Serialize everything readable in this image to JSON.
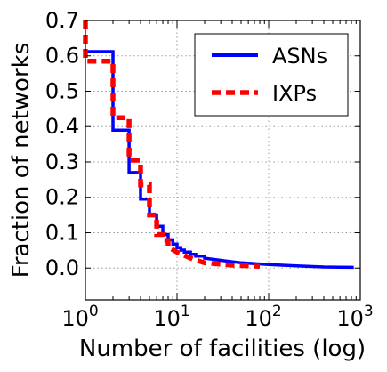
{
  "chart_data": {
    "type": "line",
    "title": "",
    "xlabel": "Number of facilities (log)",
    "ylabel": "Fraction of networks",
    "xscale": "log",
    "xlim": [
      1,
      1000
    ],
    "ylim": [
      -0.09,
      0.7
    ],
    "grid": true,
    "legend_position": "top-right",
    "yticks": [
      "0.0",
      "0.1",
      "0.2",
      "0.3",
      "0.4",
      "0.5",
      "0.6",
      "0.7"
    ],
    "xticks": [
      {
        "base": "10",
        "exp": "0",
        "value": 1
      },
      {
        "base": "10",
        "exp": "1",
        "value": 10
      },
      {
        "base": "10",
        "exp": "2",
        "value": 100
      },
      {
        "base": "10",
        "exp": "3",
        "value": 1000
      }
    ],
    "series": [
      {
        "name": "ASNs",
        "color": "#0000ff",
        "style": "solid",
        "points": [
          [
            1,
            0.612
          ],
          [
            2,
            0.612
          ],
          [
            2,
            0.39
          ],
          [
            3,
            0.39
          ],
          [
            3,
            0.27
          ],
          [
            4,
            0.27
          ],
          [
            4,
            0.195
          ],
          [
            5,
            0.195
          ],
          [
            5,
            0.15
          ],
          [
            6,
            0.15
          ],
          [
            6,
            0.118
          ],
          [
            7,
            0.118
          ],
          [
            7,
            0.095
          ],
          [
            8,
            0.095
          ],
          [
            8,
            0.08
          ],
          [
            9,
            0.08
          ],
          [
            9,
            0.068
          ],
          [
            10,
            0.068
          ],
          [
            10,
            0.058
          ],
          [
            11,
            0.058
          ],
          [
            11,
            0.051
          ],
          [
            12,
            0.051
          ],
          [
            12,
            0.045
          ],
          [
            14,
            0.045
          ],
          [
            14,
            0.039
          ],
          [
            16,
            0.039
          ],
          [
            16,
            0.034
          ],
          [
            20,
            0.034
          ],
          [
            20,
            0.028
          ],
          [
            30,
            0.022
          ],
          [
            50,
            0.015
          ],
          [
            100,
            0.01
          ],
          [
            200,
            0.006
          ],
          [
            400,
            0.003
          ],
          [
            850,
            0.002
          ]
        ]
      },
      {
        "name": "IXPs",
        "color": "#ff0000",
        "style": "dashed",
        "points": [
          [
            1,
            0.7
          ],
          [
            1,
            0.585
          ],
          [
            2,
            0.585
          ],
          [
            2,
            0.425
          ],
          [
            3,
            0.425
          ],
          [
            3,
            0.305
          ],
          [
            4,
            0.305
          ],
          [
            4,
            0.235
          ],
          [
            5,
            0.235
          ],
          [
            5,
            0.15
          ],
          [
            6,
            0.15
          ],
          [
            6,
            0.095
          ],
          [
            7,
            0.095
          ],
          [
            7,
            0.078
          ],
          [
            8,
            0.078
          ],
          [
            8,
            0.06
          ],
          [
            10,
            0.045
          ],
          [
            15,
            0.025
          ],
          [
            20,
            0.015
          ],
          [
            40,
            0.008
          ],
          [
            80,
            0.005
          ]
        ]
      }
    ]
  }
}
